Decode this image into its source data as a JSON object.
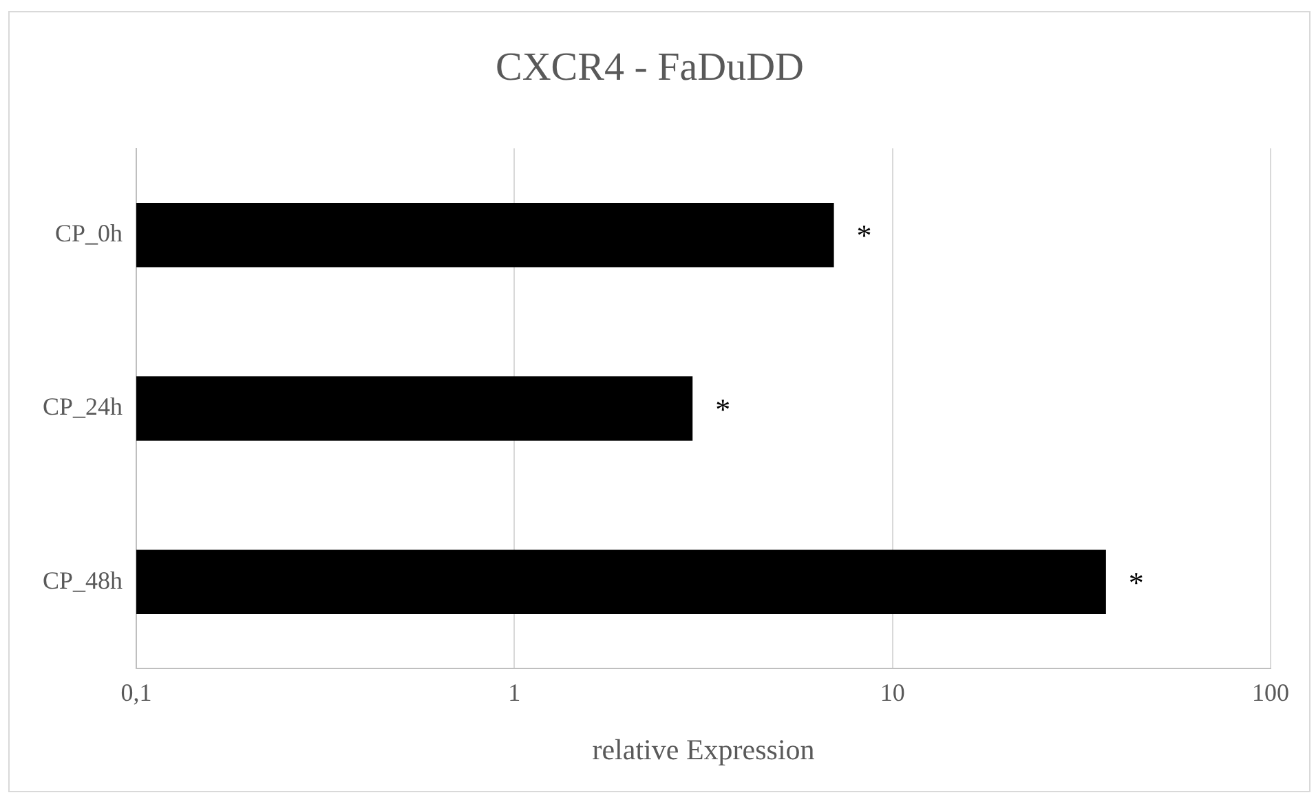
{
  "chart_data": {
    "type": "bar",
    "orientation": "horizontal",
    "title": "CXCR4 - FaDuDD",
    "xlabel": "relative Expression",
    "categories": [
      "CP_0h",
      "CP_24h",
      "CP_48h"
    ],
    "values": [
      7.0,
      2.96,
      36.7
    ],
    "color": "#000000",
    "log": "x",
    "xlim": [
      0.1,
      100
    ],
    "xticks": [
      {
        "value": 0.1,
        "label": "0,1"
      },
      1,
      10,
      100
    ],
    "grid": "x",
    "annotations": [
      "*",
      "*",
      "*"
    ]
  }
}
